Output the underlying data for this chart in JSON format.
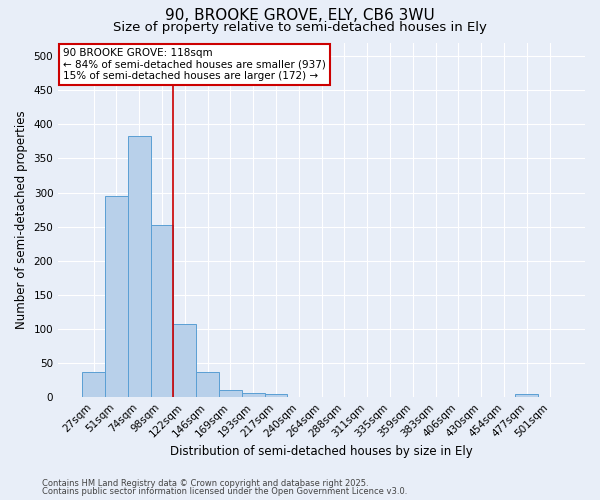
{
  "title1": "90, BROOKE GROVE, ELY, CB6 3WU",
  "title2": "Size of property relative to semi-detached houses in Ely",
  "xlabel": "Distribution of semi-detached houses by size in Ely",
  "ylabel": "Number of semi-detached properties",
  "bar_labels": [
    "27sqm",
    "51sqm",
    "74sqm",
    "98sqm",
    "122sqm",
    "146sqm",
    "169sqm",
    "193sqm",
    "217sqm",
    "240sqm",
    "264sqm",
    "288sqm",
    "311sqm",
    "335sqm",
    "359sqm",
    "383sqm",
    "406sqm",
    "430sqm",
    "454sqm",
    "477sqm",
    "501sqm"
  ],
  "bar_values": [
    37,
    295,
    383,
    253,
    108,
    37,
    10,
    6,
    4,
    0,
    0,
    0,
    0,
    0,
    0,
    0,
    0,
    0,
    0,
    4,
    0
  ],
  "bar_color": "#b8d0ea",
  "bar_edge_color": "#5a9fd4",
  "bar_width": 1.0,
  "vline_color": "#cc0000",
  "vline_x": 3.5,
  "annotation_line1": "90 BROOKE GROVE: 118sqm",
  "annotation_line2": "← 84% of semi-detached houses are smaller (937)",
  "annotation_line3": "15% of semi-detached houses are larger (172) →",
  "annotation_box_color": "#cc0000",
  "annotation_box_fill": "#ffffff",
  "ylim": [
    0,
    520
  ],
  "yticks": [
    0,
    50,
    100,
    150,
    200,
    250,
    300,
    350,
    400,
    450,
    500
  ],
  "footnote1": "Contains HM Land Registry data © Crown copyright and database right 2025.",
  "footnote2": "Contains public sector information licensed under the Open Government Licence v3.0.",
  "bg_color": "#e8eef8",
  "grid_color": "#ffffff",
  "title_fontsize": 11,
  "subtitle_fontsize": 9.5,
  "axis_label_fontsize": 8.5,
  "tick_fontsize": 7.5,
  "annotation_fontsize": 7.5,
  "footnote_fontsize": 6.0
}
